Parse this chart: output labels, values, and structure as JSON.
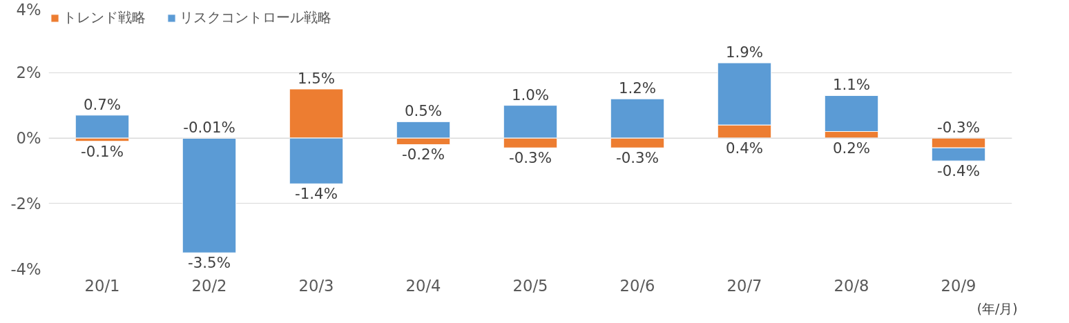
{
  "chart_data": {
    "type": "bar",
    "stacked": true,
    "xlabel": "(年/月)",
    "categories": [
      "20/1",
      "20/2",
      "20/3",
      "20/4",
      "20/5",
      "20/6",
      "20/7",
      "20/8",
      "20/9"
    ],
    "series": [
      {
        "name": "トレンド戦略",
        "color": "#ed7d31",
        "values": [
          -0.1,
          -0.01,
          1.5,
          -0.2,
          -0.3,
          -0.3,
          0.4,
          0.2,
          -0.3
        ],
        "value_labels": [
          "-0.1%",
          "-0.01%",
          "1.5%",
          "-0.2%",
          "-0.3%",
          "-0.3%",
          "0.4%",
          "0.2%",
          "-0.3%"
        ]
      },
      {
        "name": "リスクコントロール戦略",
        "color": "#5b9bd5",
        "values": [
          0.7,
          -3.5,
          -1.4,
          0.5,
          1.0,
          1.2,
          1.9,
          1.1,
          -0.4
        ],
        "value_labels": [
          "0.7%",
          "-3.5%",
          "-1.4%",
          "0.5%",
          "1.0%",
          "1.2%",
          "1.9%",
          "1.1%",
          "-0.4%"
        ]
      }
    ],
    "ylim": [
      -4,
      4
    ],
    "yticks": [
      {
        "value": -4,
        "label": "-4%"
      },
      {
        "value": -2,
        "label": "-2%"
      },
      {
        "value": 0,
        "label": "0%"
      },
      {
        "value": 2,
        "label": "2%"
      },
      {
        "value": 4,
        "label": "4%"
      }
    ],
    "grid": "y",
    "legend": "top left"
  }
}
